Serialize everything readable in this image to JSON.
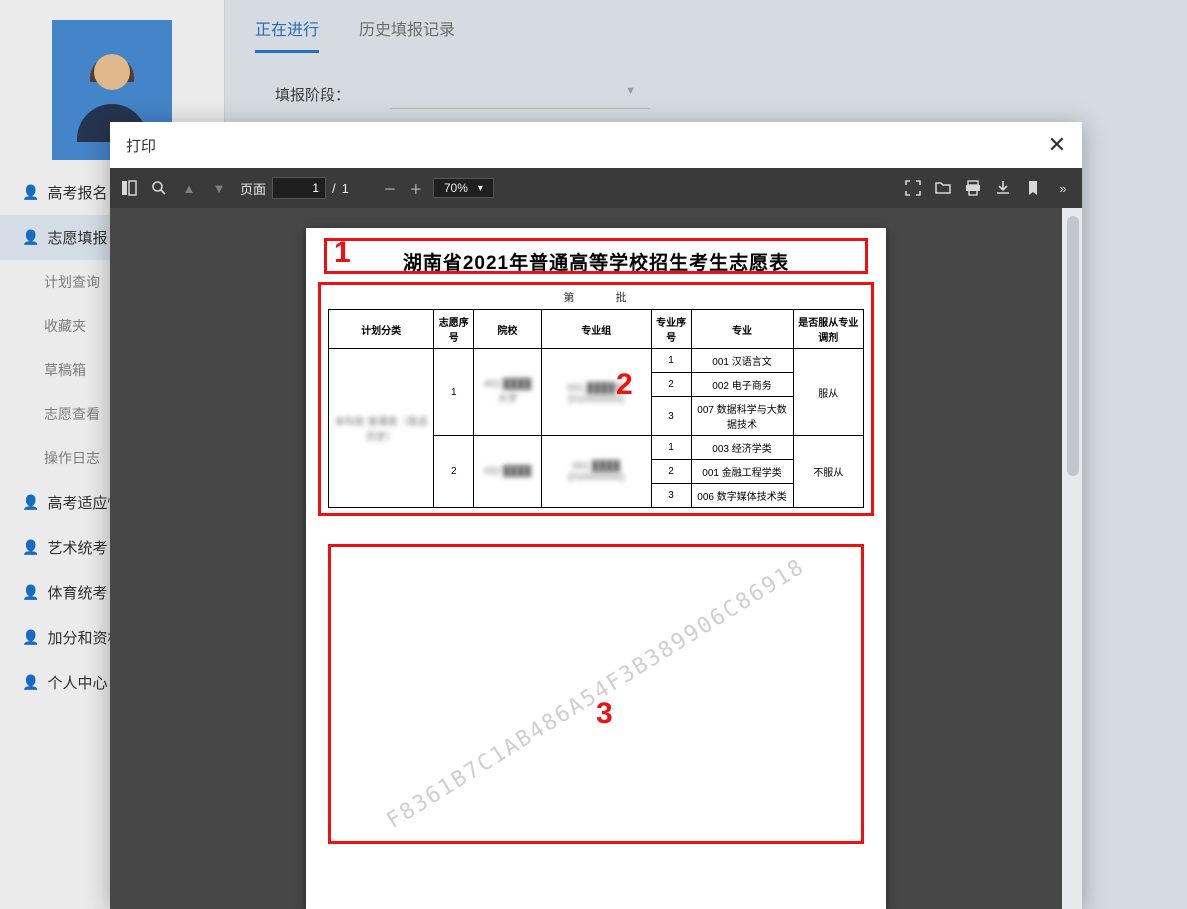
{
  "colors": {
    "accent": "#2d78c8",
    "toolbar_bg": "#3a3a3a",
    "viewer_bg": "#474747",
    "annotation": "#e11",
    "page_bg": "#ffffff",
    "app_bg": "#e8eef4"
  },
  "background": {
    "tabs": {
      "active": "正在进行",
      "history": "历史填报记录"
    },
    "filter_label": "填报阶段：",
    "sidebar": {
      "items": [
        {
          "label": "高考报名",
          "sub": false
        },
        {
          "label": "志愿填报",
          "sub": false,
          "active": true
        },
        {
          "label": "计划查询",
          "sub": true
        },
        {
          "label": "收藏夹",
          "sub": true
        },
        {
          "label": "草稿箱",
          "sub": true
        },
        {
          "label": "志愿查看",
          "sub": true
        },
        {
          "label": "操作日志",
          "sub": true
        },
        {
          "label": "高考适应性",
          "sub": false
        },
        {
          "label": "艺术统考",
          "sub": false
        },
        {
          "label": "体育统考",
          "sub": false
        },
        {
          "label": "加分和资格",
          "sub": false
        },
        {
          "label": "个人中心",
          "sub": false
        }
      ]
    }
  },
  "dialog": {
    "title": "打印",
    "pdf_toolbar": {
      "page_label": "页面",
      "page_current": "1",
      "page_total": "1",
      "zoom_label": "70%",
      "icons": {
        "sidebar": "thumbnails-icon",
        "search": "search-icon",
        "up": "page-up-icon",
        "down": "page-down-icon",
        "minus": "zoom-out-icon",
        "plus": "zoom-in-icon",
        "fullscreen": "fullscreen-icon",
        "open": "open-file-icon",
        "print": "print-icon",
        "download": "download-icon",
        "bookmark": "bookmark-icon",
        "more": "more-icon"
      }
    }
  },
  "document": {
    "title": "湖南省2021年普通高等学校招生考生志愿表",
    "batch_caption": "第　　　批",
    "annotations": [
      {
        "id": "1",
        "desc": "title-region"
      },
      {
        "id": "2",
        "desc": "table-region"
      },
      {
        "id": "3",
        "desc": "watermark-region"
      }
    ],
    "watermark": "F8361B7C1AB486A54F3B389906C86918",
    "table": {
      "headers": [
        "计划分类",
        "志愿序号",
        "院校",
        "专业组",
        "专业序号",
        "专业",
        "是否服从专业调剂"
      ],
      "plan_category": "本科批 普通类（首选历史）",
      "rows": [
        {
          "vol_no": "1",
          "school": "402 ████ 大学",
          "group": "001 ████组 (010000000)",
          "majors": [
            {
              "no": "1",
              "name": "001 汉语言文"
            },
            {
              "no": "2",
              "name": "002 电子商务"
            },
            {
              "no": "3",
              "name": "007 数据科学与大数据技术"
            }
          ],
          "adjust": "服从"
        },
        {
          "vol_no": "2",
          "school": "432 ████",
          "group": "001 ████ (010000000)",
          "majors": [
            {
              "no": "1",
              "name": "003 经济学类"
            },
            {
              "no": "2",
              "name": "001 金融工程学类"
            },
            {
              "no": "3",
              "name": "006 数字媒体技术类"
            }
          ],
          "adjust": "不服从"
        }
      ]
    }
  }
}
